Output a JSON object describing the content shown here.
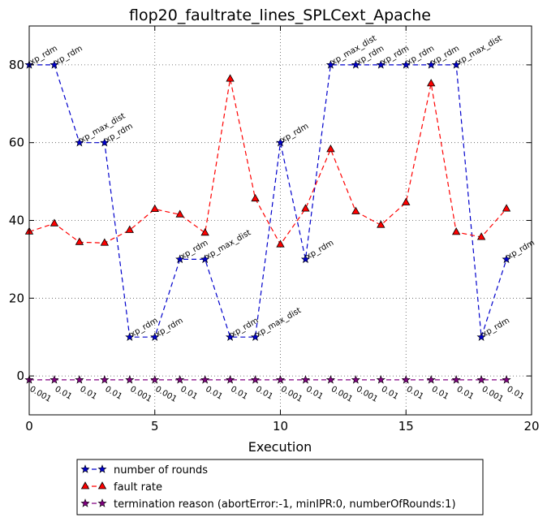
{
  "chart_data": {
    "type": "line",
    "title": "flop20_faultrate_lines_SPLCext_Apache",
    "xlabel": "Execution",
    "ylabel": "",
    "xlim": [
      0,
      20
    ],
    "ylim": [
      -10,
      90
    ],
    "xticks": [
      0,
      5,
      10,
      15,
      20
    ],
    "yticks": [
      0,
      20,
      40,
      60,
      80
    ],
    "grid": true,
    "legend_position": "below",
    "x": [
      0,
      1,
      2,
      3,
      4,
      5,
      6,
      7,
      8,
      9,
      10,
      11,
      12,
      13,
      14,
      15,
      16,
      17,
      18,
      19
    ],
    "series": [
      {
        "name": "number of rounds",
        "color": "#0000cc",
        "marker": "star",
        "values": [
          80,
          80,
          60,
          60,
          10,
          10,
          30,
          30,
          10,
          10,
          60,
          30,
          80,
          80,
          80,
          80,
          80,
          80,
          10,
          30
        ],
        "point_labels": [
          "xp_rdm",
          "xp_rdm",
          "xp_max_dist",
          "xp_rdm",
          "xp_rdm",
          "xp_rdm",
          "xp_rdm",
          "xp_max_dist",
          "xp_rdm",
          "xp_max_dist",
          "xp_rdm",
          "xp_rdm",
          "xp_max_dist",
          "xp_rdm",
          "xp_rdm",
          "xp_rdm",
          "xp_rdm",
          "xp_max_dist",
          "xp_rdm",
          "xp_rdm"
        ]
      },
      {
        "name": "fault rate",
        "color": "#ff0000",
        "marker": "triangle",
        "values": [
          37.1,
          39.2,
          34.4,
          34.2,
          37.5,
          42.9,
          41.5,
          36.8,
          76.4,
          45.6,
          33.8,
          43.0,
          58.3,
          42.3,
          38.8,
          44.6,
          75.2,
          37.0,
          35.7,
          43.0
        ]
      },
      {
        "name": "termination reason (abortError:-1, minIPR:0, numberOfRounds:1)",
        "color": "#800080",
        "marker": "star",
        "values": [
          -1,
          -1,
          -1,
          -1,
          -1,
          -1,
          -1,
          -1,
          -1,
          -1,
          -1,
          -1,
          -1,
          -1,
          -1,
          -1,
          -1,
          -1,
          -1,
          -1
        ],
        "point_labels": [
          "0.001",
          "0.01",
          "0.01",
          "0.01",
          "0.001",
          "0.001",
          "0.01",
          "0.01",
          "0.01",
          "0.01",
          "0.001",
          "0.01",
          "0.001",
          "0.001",
          "0.01",
          "0.01",
          "0.01",
          "0.01",
          "0.001",
          "0.01"
        ]
      }
    ]
  }
}
